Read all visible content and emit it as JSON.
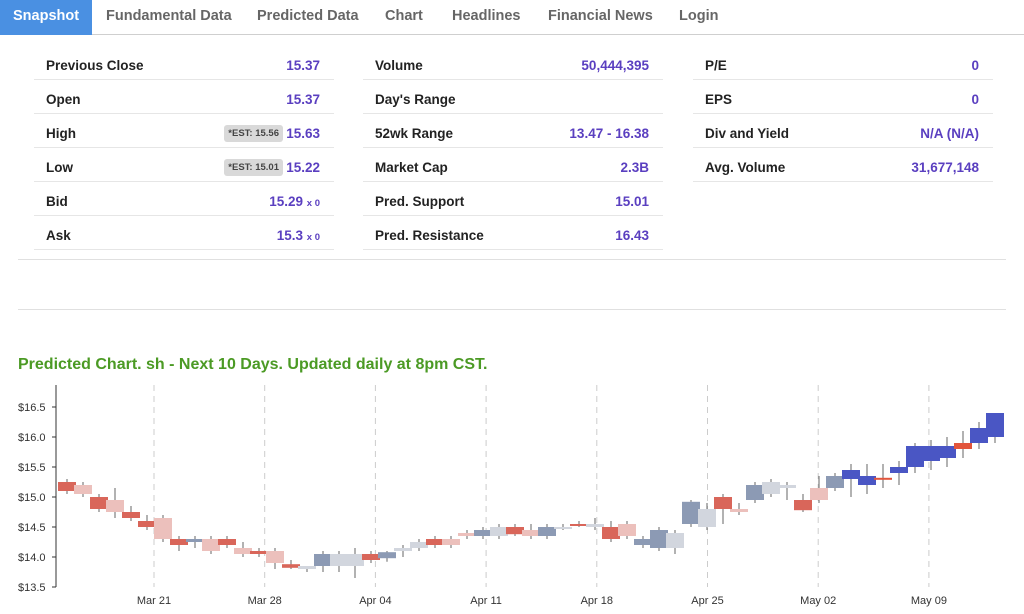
{
  "tabs": [
    {
      "label": "Snapshot",
      "active": true
    },
    {
      "label": "Fundamental Data",
      "active": false
    },
    {
      "label": "Predicted Data",
      "active": false
    },
    {
      "label": "Chart",
      "active": false
    },
    {
      "label": "Headlines",
      "active": false
    },
    {
      "label": "Financial News",
      "active": false
    },
    {
      "label": "Login",
      "active": false
    }
  ],
  "snapshot": {
    "col1": [
      {
        "label": "Previous Close",
        "value": "15.37"
      },
      {
        "label": "Open",
        "value": "15.37"
      },
      {
        "label": "High",
        "value": "15.63",
        "est": "*EST: 15.56"
      },
      {
        "label": "Low",
        "value": "15.22",
        "est": "*EST: 15.01"
      },
      {
        "label": "Bid",
        "value": "15.29",
        "size": "x 0"
      },
      {
        "label": "Ask",
        "value": "15.3",
        "size": "x 0"
      }
    ],
    "col2": [
      {
        "label": "Volume",
        "value": "50,444,395"
      },
      {
        "label": "Day's Range",
        "value": ""
      },
      {
        "label": "52wk Range",
        "value": "13.47 - 16.38"
      },
      {
        "label": "Market Cap",
        "value": "2.3B"
      },
      {
        "label": "Pred. Support",
        "value": "15.01"
      },
      {
        "label": "Pred. Resistance",
        "value": "16.43"
      }
    ],
    "col3": [
      {
        "label": "P/E",
        "value": "0"
      },
      {
        "label": "EPS",
        "value": "0"
      },
      {
        "label": "Div and Yield",
        "value": "N/A (N/A)"
      },
      {
        "label": "Avg. Volume",
        "value": "31,677,148"
      }
    ]
  },
  "chart_title": "Predicted Chart. sh - Next 10 Days. Updated daily at 8pm CST.",
  "colors": {
    "accent": "#4a90e2",
    "value": "#5a3fc0",
    "title": "#4b9a24",
    "hist_down": "#d9665a",
    "hist_up": "#8c9ab4",
    "hist_down_light": "#ecc0bc",
    "hist_up_light": "#d2d6de",
    "pred_up": "#4a56c4",
    "pred_down": "#e2553c"
  },
  "chart_data": {
    "type": "candlestick",
    "y_ticks": [
      "$13.5",
      "$14.0",
      "$14.5",
      "$15.0",
      "$15.5",
      "$16.0",
      "$16.5"
    ],
    "ylim": [
      13.5,
      16.7
    ],
    "x_ticks": [
      "Mar 21",
      "Mar 28",
      "Apr 04",
      "Apr 11",
      "Apr 18",
      "Apr 25",
      "May 02",
      "May 09"
    ],
    "candles": [
      {
        "o": 15.25,
        "h": 15.3,
        "l": 15.05,
        "c": 15.1,
        "style": "down"
      },
      {
        "o": 15.2,
        "h": 15.25,
        "l": 15.0,
        "c": 15.05,
        "style": "down_light"
      },
      {
        "o": 15.0,
        "h": 15.05,
        "l": 14.75,
        "c": 14.8,
        "style": "down"
      },
      {
        "o": 14.95,
        "h": 15.15,
        "l": 14.65,
        "c": 14.75,
        "style": "down_light"
      },
      {
        "o": 14.75,
        "h": 14.85,
        "l": 14.6,
        "c": 14.65,
        "style": "down"
      },
      {
        "o": 14.6,
        "h": 14.7,
        "l": 14.45,
        "c": 14.5,
        "style": "down"
      },
      {
        "o": 14.65,
        "h": 14.7,
        "l": 14.25,
        "c": 14.3,
        "style": "down_light"
      },
      {
        "o": 14.3,
        "h": 14.35,
        "l": 14.1,
        "c": 14.2,
        "style": "down"
      },
      {
        "o": 14.25,
        "h": 14.35,
        "l": 14.15,
        "c": 14.3,
        "style": "up"
      },
      {
        "o": 14.3,
        "h": 14.35,
        "l": 14.05,
        "c": 14.1,
        "style": "down_light"
      },
      {
        "o": 14.3,
        "h": 14.35,
        "l": 14.15,
        "c": 14.2,
        "style": "down"
      },
      {
        "o": 14.15,
        "h": 14.25,
        "l": 14.0,
        "c": 14.05,
        "style": "down_light"
      },
      {
        "o": 14.1,
        "h": 14.15,
        "l": 14.0,
        "c": 14.05,
        "style": "down"
      },
      {
        "o": 14.1,
        "h": 14.15,
        "l": 13.8,
        "c": 13.9,
        "style": "down_light"
      },
      {
        "o": 13.88,
        "h": 13.95,
        "l": 13.8,
        "c": 13.82,
        "style": "down"
      },
      {
        "o": 13.8,
        "h": 13.85,
        "l": 13.75,
        "c": 13.85,
        "style": "up_light"
      },
      {
        "o": 13.85,
        "h": 14.1,
        "l": 13.75,
        "c": 14.05,
        "style": "up"
      },
      {
        "o": 13.85,
        "h": 14.1,
        "l": 13.75,
        "c": 14.05,
        "style": "up_light"
      },
      {
        "o": 13.85,
        "h": 14.15,
        "l": 13.65,
        "c": 14.05,
        "style": "up_light"
      },
      {
        "o": 14.05,
        "h": 14.1,
        "l": 13.9,
        "c": 13.95,
        "style": "down"
      },
      {
        "o": 13.98,
        "h": 14.1,
        "l": 13.92,
        "c": 14.08,
        "style": "up"
      },
      {
        "o": 14.1,
        "h": 14.2,
        "l": 14.0,
        "c": 14.15,
        "style": "up_light"
      },
      {
        "o": 14.15,
        "h": 14.3,
        "l": 14.1,
        "c": 14.25,
        "style": "up_light"
      },
      {
        "o": 14.3,
        "h": 14.35,
        "l": 14.15,
        "c": 14.2,
        "style": "down"
      },
      {
        "o": 14.3,
        "h": 14.35,
        "l": 14.15,
        "c": 14.2,
        "style": "down_light"
      },
      {
        "o": 14.35,
        "h": 14.45,
        "l": 14.3,
        "c": 14.4,
        "style": "down_light"
      },
      {
        "o": 14.35,
        "h": 14.5,
        "l": 14.3,
        "c": 14.45,
        "style": "up"
      },
      {
        "o": 14.35,
        "h": 14.55,
        "l": 14.3,
        "c": 14.5,
        "style": "up_light"
      },
      {
        "o": 14.5,
        "h": 14.55,
        "l": 14.35,
        "c": 14.38,
        "style": "down"
      },
      {
        "o": 14.45,
        "h": 14.55,
        "l": 14.3,
        "c": 14.35,
        "style": "down_light"
      },
      {
        "o": 14.35,
        "h": 14.55,
        "l": 14.3,
        "c": 14.5,
        "style": "up"
      },
      {
        "o": 14.5,
        "h": 14.55,
        "l": 14.45,
        "c": 14.5,
        "style": "up_light"
      },
      {
        "o": 14.55,
        "h": 14.6,
        "l": 14.5,
        "c": 14.52,
        "style": "down"
      },
      {
        "o": 14.5,
        "h": 14.65,
        "l": 14.45,
        "c": 14.55,
        "style": "up_light"
      },
      {
        "o": 14.5,
        "h": 14.6,
        "l": 14.25,
        "c": 14.3,
        "style": "down"
      },
      {
        "o": 14.55,
        "h": 14.6,
        "l": 14.3,
        "c": 14.35,
        "style": "down_light"
      },
      {
        "o": 14.2,
        "h": 14.35,
        "l": 14.15,
        "c": 14.3,
        "style": "up"
      },
      {
        "o": 14.15,
        "h": 14.5,
        "l": 14.1,
        "c": 14.45,
        "style": "up"
      },
      {
        "o": 14.15,
        "h": 14.45,
        "l": 14.05,
        "c": 14.4,
        "style": "up_light"
      },
      {
        "o": 14.55,
        "h": 14.95,
        "l": 14.5,
        "c": 14.92,
        "style": "up"
      },
      {
        "o": 14.5,
        "h": 14.9,
        "l": 14.45,
        "c": 14.8,
        "style": "up_light"
      },
      {
        "o": 14.8,
        "h": 15.05,
        "l": 14.55,
        "c": 15.0,
        "style": "down"
      },
      {
        "o": 14.8,
        "h": 14.9,
        "l": 14.7,
        "c": 14.75,
        "style": "down_light"
      },
      {
        "o": 14.95,
        "h": 15.25,
        "l": 14.9,
        "c": 15.2,
        "style": "up"
      },
      {
        "o": 15.05,
        "h": 15.3,
        "l": 15.0,
        "c": 15.25,
        "style": "up_light"
      },
      {
        "o": 15.2,
        "h": 15.25,
        "l": 14.95,
        "c": 15.15,
        "style": "up_light"
      },
      {
        "o": 14.95,
        "h": 15.05,
        "l": 14.75,
        "c": 14.78,
        "style": "down"
      },
      {
        "o": 15.15,
        "h": 15.35,
        "l": 14.9,
        "c": 14.95,
        "style": "down_light"
      },
      {
        "o": 15.15,
        "h": 15.4,
        "l": 15.1,
        "c": 15.35,
        "style": "up"
      },
      {
        "o": 15.3,
        "h": 15.55,
        "l": 15.0,
        "c": 15.45,
        "style": "pred_up"
      },
      {
        "o": 15.2,
        "h": 15.55,
        "l": 15.05,
        "c": 15.35,
        "style": "pred_up"
      },
      {
        "o": 15.32,
        "h": 15.55,
        "l": 15.15,
        "c": 15.3,
        "style": "pred_down"
      },
      {
        "o": 15.4,
        "h": 15.6,
        "l": 15.2,
        "c": 15.5,
        "style": "pred_up"
      },
      {
        "o": 15.5,
        "h": 15.9,
        "l": 15.4,
        "c": 15.85,
        "style": "pred_up"
      },
      {
        "o": 15.6,
        "h": 15.95,
        "l": 15.45,
        "c": 15.85,
        "style": "pred_up"
      },
      {
        "o": 15.65,
        "h": 16.0,
        "l": 15.5,
        "c": 15.85,
        "style": "pred_up"
      },
      {
        "o": 15.9,
        "h": 16.1,
        "l": 15.65,
        "c": 15.8,
        "style": "pred_down"
      },
      {
        "o": 15.9,
        "h": 16.25,
        "l": 15.8,
        "c": 16.15,
        "style": "pred_up"
      },
      {
        "o": 16.0,
        "h": 16.4,
        "l": 15.9,
        "c": 16.4,
        "style": "pred_up"
      }
    ]
  }
}
